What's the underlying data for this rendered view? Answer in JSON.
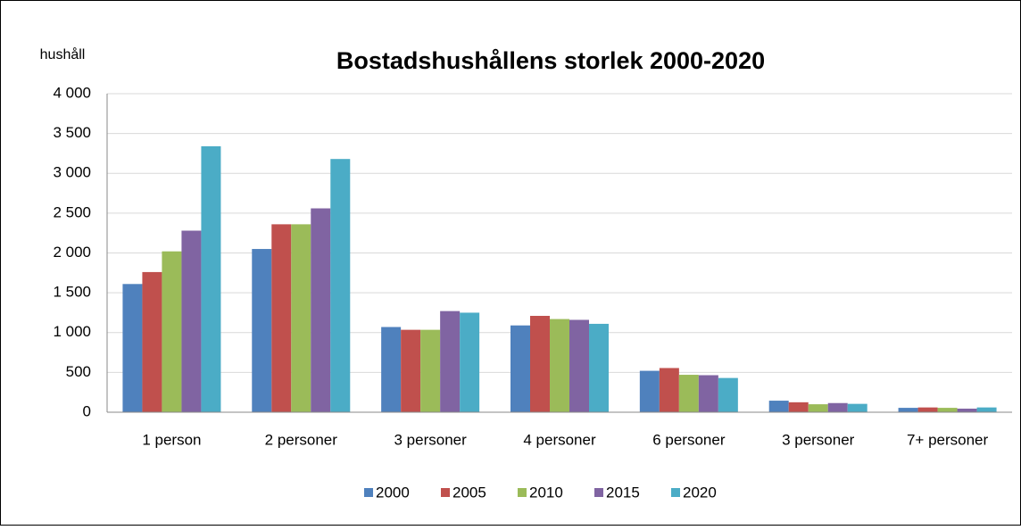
{
  "chart_data": {
    "type": "bar",
    "title": "Bostadshushållens storlek 2000-2020",
    "y_label": "hushåll",
    "categories": [
      "1 person",
      "2 personer",
      "3 personer",
      "4 personer",
      "6 personer",
      "3 personer",
      "7+ personer"
    ],
    "series": [
      {
        "name": "2000",
        "color": "#4f81bd",
        "values": [
          1610,
          2050,
          1070,
          1090,
          520,
          145,
          55
        ]
      },
      {
        "name": "2005",
        "color": "#c0504d",
        "values": [
          1760,
          2360,
          1035,
          1210,
          555,
          125,
          60
        ]
      },
      {
        "name": "2010",
        "color": "#9bbb59",
        "values": [
          2020,
          2360,
          1035,
          1170,
          470,
          100,
          55
        ]
      },
      {
        "name": "2015",
        "color": "#8064a2",
        "values": [
          2280,
          2560,
          1270,
          1160,
          465,
          115,
          45
        ]
      },
      {
        "name": "2020",
        "color": "#4bacc6",
        "values": [
          3340,
          3180,
          1250,
          1110,
          430,
          105,
          60
        ]
      }
    ],
    "ylim": [
      0,
      4000
    ],
    "yticks": [
      0,
      500,
      {
        "value": 1000,
        "label": "1 000"
      },
      {
        "value": 1500,
        "label": "1 500"
      },
      {
        "value": 2000,
        "label": "2 000"
      },
      {
        "value": 2500,
        "label": "2 500"
      },
      {
        "value": 3000,
        "label": "3 000"
      },
      {
        "value": 3500,
        "label": "3 500"
      },
      {
        "value": 4000,
        "label": "4 000"
      }
    ],
    "grid": true,
    "legend": "bottom"
  }
}
